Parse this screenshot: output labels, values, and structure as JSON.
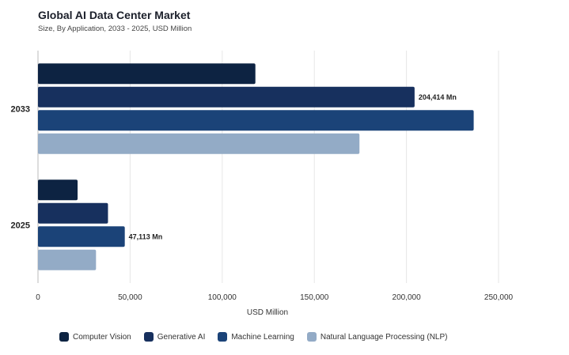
{
  "header": {
    "title": "Global AI Data Center Market",
    "subtitle": "Size, By Application, 2033 - 2025, USD Million"
  },
  "chart_data": {
    "type": "bar",
    "orientation": "horizontal",
    "title": "Global AI Data Center Market",
    "subtitle": "Size, By Application, 2033 - 2025, USD Million",
    "categories": [
      "2033",
      "2025"
    ],
    "series": [
      {
        "name": "Computer Vision",
        "color": "#0d2342",
        "values": [
          118000,
          21500
        ]
      },
      {
        "name": "Generative AI",
        "color": "#17305e",
        "values": [
          204414,
          38000
        ]
      },
      {
        "name": "Machine Learning",
        "color": "#1b4378",
        "values": [
          236500,
          47113
        ]
      },
      {
        "name": "Natural Language Processing (NLP)",
        "color": "#93abc6",
        "values": [
          174500,
          31500
        ]
      }
    ],
    "data_labels": [
      {
        "category": "2033",
        "series": "Generative AI",
        "text": "204,414 Mn"
      },
      {
        "category": "2025",
        "series": "Machine Learning",
        "text": "47,113 Mn"
      }
    ],
    "xlabel": "USD Million",
    "ylabel": "",
    "xlim": [
      0,
      250000
    ],
    "xticks": [
      0,
      50000,
      100000,
      150000,
      200000,
      250000
    ],
    "xtick_labels": [
      "0",
      "50,000",
      "100,000",
      "150,000",
      "200,000",
      "250,000"
    ],
    "grid": true,
    "legend_position": "bottom"
  }
}
